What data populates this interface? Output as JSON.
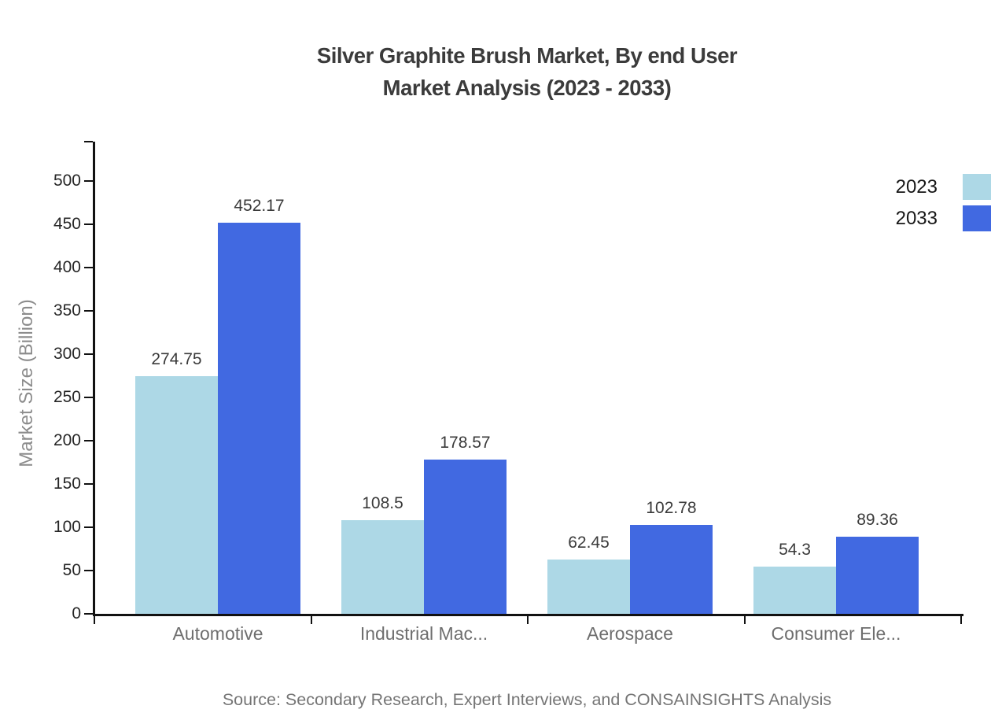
{
  "title": {
    "line1": "Silver Graphite Brush Market, By end User",
    "line2": "Market Analysis (2023 - 2033)"
  },
  "source": "Source: Secondary Research, Expert Interviews, and CONSAINSIGHTS Analysis",
  "chart_data": {
    "type": "bar",
    "title": "Silver Graphite Brush Market, By end User Market Analysis (2023 - 2033)",
    "categories": [
      "Automotive",
      "Industrial Mac...",
      "Aerospace",
      "Consumer Ele..."
    ],
    "series": [
      {
        "name": "2023",
        "color": "#ADD8E6",
        "values": [
          274.75,
          108.5,
          62.45,
          54.3
        ]
      },
      {
        "name": "2033",
        "color": "#4169E1",
        "values": [
          452.17,
          178.57,
          102.78,
          89.36
        ]
      }
    ],
    "xlabel": "",
    "ylabel": "Market Size (Billion)",
    "ylim": [
      0,
      500
    ],
    "yticks": [
      0,
      50,
      100,
      150,
      200,
      250,
      300,
      350,
      400,
      450,
      500
    ],
    "grid": false,
    "value_labels": true,
    "legend_position": "top-right"
  }
}
